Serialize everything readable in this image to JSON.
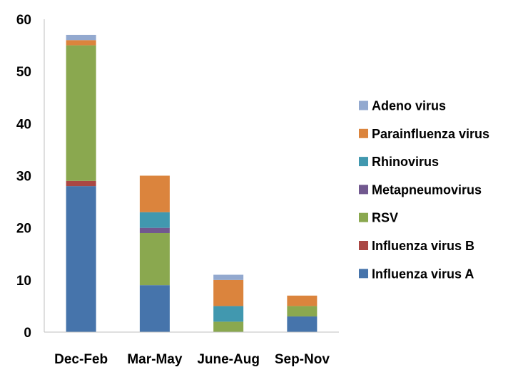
{
  "chart_data": {
    "type": "bar",
    "stacked": true,
    "categories": [
      "Dec-Feb",
      "Mar-May",
      "June-Aug",
      "Sep-Nov"
    ],
    "series": [
      {
        "name": "Influenza virus A",
        "color": "#4674AB",
        "values": [
          28,
          9,
          0,
          3
        ]
      },
      {
        "name": "Influenza virus B",
        "color": "#AA4744",
        "values": [
          1,
          0,
          0,
          0
        ]
      },
      {
        "name": "RSV",
        "color": "#8AA84F",
        "values": [
          26,
          10,
          2,
          2
        ]
      },
      {
        "name": "Metapneumovirus",
        "color": "#71588F",
        "values": [
          0,
          1,
          0,
          0
        ]
      },
      {
        "name": "Rhinovirus",
        "color": "#4198AF",
        "values": [
          0,
          3,
          3,
          0
        ]
      },
      {
        "name": "Parainfluenza virus",
        "color": "#DB843D",
        "values": [
          1,
          7,
          5,
          2
        ]
      },
      {
        "name": "Adeno virus",
        "color": "#93A9CF",
        "values": [
          1,
          0,
          1,
          0
        ]
      }
    ],
    "legend_order": [
      "Adeno virus",
      "Parainfluenza virus",
      "Rhinovirus",
      "Metapneumovirus",
      "RSV",
      "Influenza virus B",
      "Influenza virus A"
    ],
    "y_ticks": [
      0,
      10,
      20,
      30,
      40,
      50,
      60
    ],
    "ylim": [
      0,
      60
    ],
    "grid": false,
    "legend_position": "right"
  }
}
